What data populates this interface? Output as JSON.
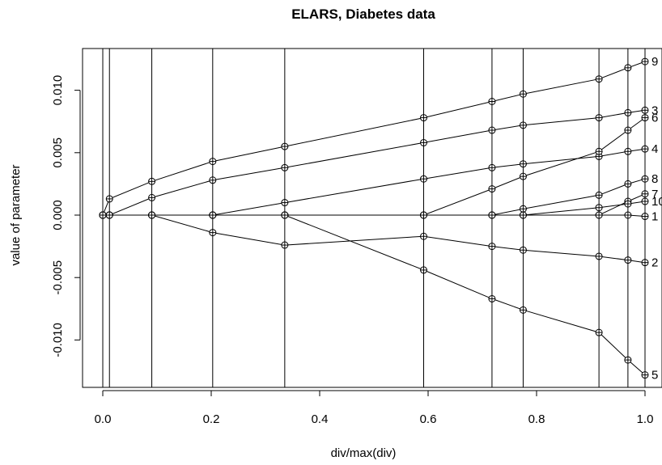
{
  "chart_data": {
    "type": "line",
    "title": "ELARS, Diabetes data",
    "xlabel": "div/max(div)",
    "ylabel": "value of parameter",
    "xlim": [
      0,
      1
    ],
    "ylim": [
      -0.013,
      0.0123
    ],
    "x_ticks": [
      0,
      0.2,
      0.4,
      0.6,
      0.8,
      1
    ],
    "x_tick_labels": [
      "0.0",
      "0.2",
      "0.4",
      "0.6",
      "0.8",
      "1.0"
    ],
    "y_ticks": [
      -0.01,
      -0.005,
      0,
      0.005,
      0.01
    ],
    "y_tick_labels": [
      "-0.010",
      "-0.005",
      "0.000",
      "0.005",
      "0.010"
    ],
    "grid": false,
    "vertical_lines": [
      0,
      0.0123,
      0.0904,
      0.2027,
      0.3356,
      0.5918,
      0.7178,
      0.7753,
      0.9151,
      0.9685,
      1
    ],
    "x": [
      0,
      0.0123,
      0.0904,
      0.2027,
      0.3356,
      0.5918,
      0.7178,
      0.7753,
      0.9151,
      0.9685,
      1
    ],
    "series": [
      {
        "name": "1",
        "values": [
          0,
          0,
          0,
          0,
          0,
          0,
          0,
          0,
          0,
          0,
          -0.0001
        ]
      },
      {
        "name": "2",
        "values": [
          0,
          0,
          0,
          -0.0014,
          -0.0024,
          -0.0017,
          -0.0025,
          -0.0028,
          -0.0033,
          -0.0036,
          -0.0038
        ]
      },
      {
        "name": "3",
        "values": [
          0,
          0,
          0.0014,
          0.0028,
          0.0038,
          0.0058,
          0.0068,
          0.0072,
          0.0078,
          0.0082,
          0.0084
        ]
      },
      {
        "name": "4",
        "values": [
          0,
          0,
          0,
          0,
          0.001,
          0.0029,
          0.0038,
          0.0041,
          0.0047,
          0.0051,
          0.0053
        ]
      },
      {
        "name": "5",
        "values": [
          0,
          0,
          0,
          0,
          0,
          -0.0044,
          -0.0067,
          -0.0076,
          -0.0094,
          -0.0116,
          -0.0128
        ]
      },
      {
        "name": "6",
        "values": [
          0,
          0,
          0,
          0,
          0,
          0,
          0.0021,
          0.0031,
          0.0051,
          0.0068,
          0.0078
        ]
      },
      {
        "name": "7",
        "values": [
          0,
          0,
          0,
          0,
          0,
          0,
          0,
          0,
          0,
          0.0011,
          0.0017
        ]
      },
      {
        "name": "8",
        "values": [
          0,
          0,
          0,
          0,
          0,
          0,
          0,
          0.0005,
          0.0016,
          0.0025,
          0.0029
        ]
      },
      {
        "name": "9",
        "values": [
          0,
          0.0013,
          0.0027,
          0.0043,
          0.0055,
          0.0078,
          0.0091,
          0.0097,
          0.0109,
          0.0118,
          0.0123
        ]
      },
      {
        "name": "10",
        "values": [
          0,
          0,
          0,
          0,
          0,
          0,
          0,
          0,
          0.0006,
          0.0009,
          0.0011
        ]
      }
    ]
  }
}
